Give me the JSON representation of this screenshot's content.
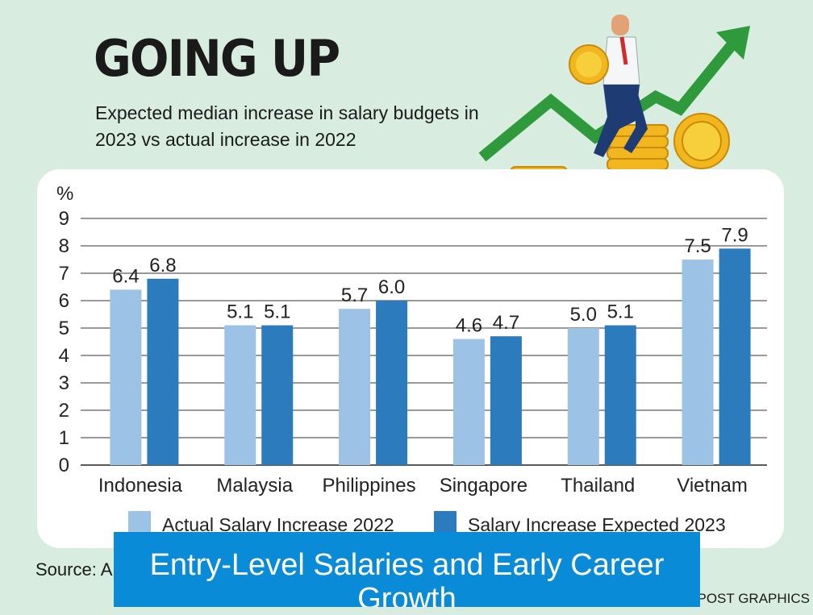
{
  "header": {
    "title": "GOING UP",
    "subtitle": "Expected median increase in salary budgets in 2023 vs actual increase in 2022"
  },
  "footer": {
    "source": "Source: A",
    "credit": "XPOST GRAPHICS"
  },
  "banner": {
    "text": "Entry-Level Salaries and Early Career Growth"
  },
  "colors": {
    "actual": "#9cc3e6",
    "expected": "#2b7bbd",
    "background": "#d9ece0",
    "banner": "#0a8bd8"
  },
  "chart_data": {
    "type": "bar",
    "title": "GOING UP",
    "subtitle": "Expected median increase in salary budgets in 2023 vs actual increase in 2022",
    "ylabel": "%",
    "xlabel": "",
    "ylim": [
      0,
      9
    ],
    "yticks": [
      0,
      1,
      2,
      3,
      4,
      5,
      6,
      7,
      8,
      9
    ],
    "grid": true,
    "legend_position": "bottom",
    "categories": [
      "Indonesia",
      "Malaysia",
      "Philippines",
      "Singapore",
      "Thailand",
      "Vietnam"
    ],
    "series": [
      {
        "name": "Actual Salary Increase 2022",
        "values": [
          6.4,
          5.1,
          5.7,
          4.6,
          5.0,
          7.5
        ],
        "labels": [
          "6.4",
          "5.1",
          "5.7",
          "4.6",
          "5.0",
          "7.5"
        ]
      },
      {
        "name": "Salary Increase Expected 2023",
        "values": [
          6.8,
          5.1,
          6.0,
          4.7,
          5.1,
          7.9
        ],
        "labels": [
          "6.8",
          "5.1",
          "6.0",
          "4.7",
          "5.1",
          "7.9"
        ]
      }
    ]
  }
}
